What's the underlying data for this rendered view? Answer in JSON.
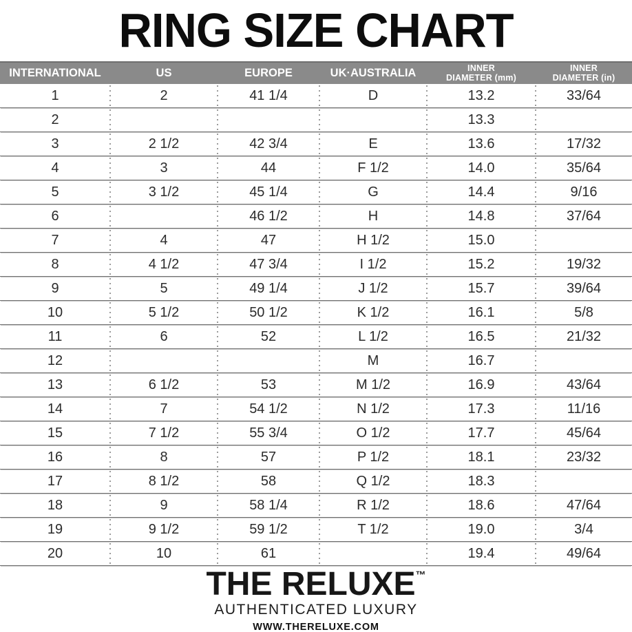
{
  "title": "RING SIZE CHART",
  "chart_data": {
    "type": "table",
    "title": "RING SIZE CHART",
    "headers": [
      "INTERNATIONAL",
      "US",
      "EUROPE",
      "UK·AUSTRALIA",
      "INNER\nDIAMETER (mm)",
      "INNER\nDIAMETER (in)"
    ],
    "rows": [
      [
        "1",
        "2",
        "41 1/4",
        "D",
        "13.2",
        "33/64"
      ],
      [
        "2",
        "",
        "",
        "",
        "13.3",
        ""
      ],
      [
        "3",
        "2 1/2",
        "42 3/4",
        "E",
        "13.6",
        "17/32"
      ],
      [
        "4",
        "3",
        "44",
        "F 1/2",
        "14.0",
        "35/64"
      ],
      [
        "5",
        "3 1/2",
        "45 1/4",
        "G",
        "14.4",
        "9/16"
      ],
      [
        "6",
        "",
        "46 1/2",
        "H",
        "14.8",
        "37/64"
      ],
      [
        "7",
        "4",
        "47",
        "H 1/2",
        "15.0",
        ""
      ],
      [
        "8",
        "4 1/2",
        "47 3/4",
        "I 1/2",
        "15.2",
        "19/32"
      ],
      [
        "9",
        "5",
        "49 1/4",
        "J 1/2",
        "15.7",
        "39/64"
      ],
      [
        "10",
        "5 1/2",
        "50 1/2",
        "K 1/2",
        "16.1",
        "5/8"
      ],
      [
        "11",
        "6",
        "52",
        "L 1/2",
        "16.5",
        "21/32"
      ],
      [
        "12",
        "",
        "",
        "M",
        "16.7",
        ""
      ],
      [
        "13",
        "6 1/2",
        "53",
        "M 1/2",
        "16.9",
        "43/64"
      ],
      [
        "14",
        "7",
        "54 1/2",
        "N 1/2",
        "17.3",
        "11/16"
      ],
      [
        "15",
        "7 1/2",
        "55 3/4",
        "O 1/2",
        "17.7",
        "45/64"
      ],
      [
        "16",
        "8",
        "57",
        "P 1/2",
        "18.1",
        "23/32"
      ],
      [
        "17",
        "8 1/2",
        "58",
        "Q 1/2",
        "18.3",
        ""
      ],
      [
        "18",
        "9",
        "58 1/4",
        "R 1/2",
        "18.6",
        "47/64"
      ],
      [
        "19",
        "9 1/2",
        "59 1/2",
        "T 1/2",
        "19.0",
        "3/4"
      ],
      [
        "20",
        "10",
        "61",
        "",
        "19.4",
        "49/64"
      ]
    ]
  },
  "footer": {
    "brand": "THE RELUXE",
    "trademark": "™",
    "tagline": "AUTHENTICATED LUXURY",
    "website": "WWW.THERELUXE.COM"
  },
  "colors": {
    "header_bg": "#8a8a8a",
    "header_text": "#ffffff",
    "body_text": "#2b2b2b",
    "separator": "#9a9a9a",
    "title_text": "#0d0d0d"
  }
}
